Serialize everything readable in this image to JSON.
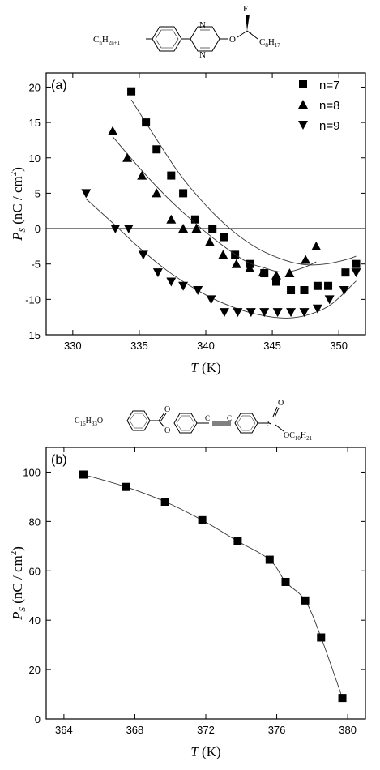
{
  "molecule_a": {
    "left_group": "C",
    "left_sub": "n",
    "left_mid": "H",
    "left_sub2": "2n+1",
    "fluorine": "F",
    "oxygen": "O",
    "nitrogen": "N",
    "chiral_mark": "*",
    "right_group": "C",
    "right_sub": "8",
    "right_mid": "H",
    "right_sub2": "17"
  },
  "molecule_b": {
    "left_group": "C",
    "left_sub": "16",
    "left_mid": "H",
    "left_sub2": "33",
    "left_o": "O",
    "ester_o1": "O",
    "ester_o2": "O",
    "sulfur": "S",
    "sulfinyl_o": "O",
    "right_o": "OC",
    "right_sub": "10",
    "right_mid": "H",
    "right_sub2": "21"
  },
  "chart_data": [
    {
      "type": "scatter",
      "panel_label": "(a)",
      "xlabel_var": "T",
      "xlabel_unit": " (K)",
      "ylabel_var": "P",
      "ylabel_sub": "S",
      "ylabel_unit": "(nC / cm",
      "ylabel_sup": "2",
      "ylabel_close": ")",
      "xlim": [
        328,
        352
      ],
      "ylim": [
        -15,
        22
      ],
      "x_ticks": [
        330,
        335,
        340,
        345,
        350
      ],
      "y_ticks": [
        -15,
        -10,
        -5,
        0,
        5,
        10,
        15,
        20
      ],
      "zero_line": true,
      "legend_position": "top-right",
      "series": [
        {
          "name": "n=7",
          "marker": "square",
          "x": [
            334.4,
            335.5,
            336.3,
            337.4,
            338.3,
            339.2,
            340.5,
            341.4,
            342.2,
            343.3,
            344.4,
            345.3,
            346.4,
            347.4,
            348.4,
            349.2,
            350.5,
            351.3
          ],
          "y": [
            19.4,
            15.0,
            11.2,
            7.5,
            5.0,
            1.3,
            0.0,
            -1.2,
            -3.7,
            -5.0,
            -6.3,
            -7.5,
            -8.7,
            -8.7,
            -8.1,
            -8.1,
            -6.2,
            -5.0
          ],
          "fit": [
            [
              334.4,
              18.2
            ],
            [
              336,
              13.5
            ],
            [
              338,
              7.8
            ],
            [
              340,
              3.3
            ],
            [
              342,
              -0.3
            ],
            [
              344,
              -2.9
            ],
            [
              346,
              -4.5
            ],
            [
              347.5,
              -5.1
            ],
            [
              349,
              -5.0
            ],
            [
              350.5,
              -4.4
            ],
            [
              351.3,
              -3.9
            ]
          ]
        },
        {
          "name": "n=8",
          "marker": "triangle-up",
          "x": [
            333.0,
            334.1,
            335.2,
            336.3,
            337.4,
            338.3,
            339.3,
            340.3,
            341.3,
            342.3,
            343.3,
            344.3,
            345.3,
            346.3,
            347.5,
            348.3
          ],
          "y": [
            13.8,
            10.0,
            7.5,
            5.0,
            1.3,
            0.0,
            0.0,
            -1.9,
            -3.7,
            -5.0,
            -5.6,
            -6.2,
            -6.6,
            -6.3,
            -4.4,
            -2.5
          ],
          "fit": [
            [
              333,
              13.0
            ],
            [
              335,
              8.6
            ],
            [
              337,
              4.6
            ],
            [
              339,
              1.1
            ],
            [
              341,
              -2.0
            ],
            [
              343,
              -4.6
            ],
            [
              344.5,
              -5.6
            ],
            [
              345.5,
              -6.1
            ],
            [
              346.5,
              -6.0
            ],
            [
              347.5,
              -5.4
            ],
            [
              348.3,
              -4.7
            ]
          ]
        },
        {
          "name": "n=9",
          "marker": "triangle-down",
          "x": [
            331.0,
            333.2,
            334.2,
            335.3,
            336.4,
            337.4,
            338.3,
            339.4,
            340.4,
            341.4,
            342.4,
            343.4,
            344.4,
            345.4,
            346.4,
            347.4,
            348.4,
            349.3,
            350.4,
            351.3
          ],
          "y": [
            5.0,
            0.0,
            0.0,
            -3.7,
            -6.2,
            -7.5,
            -8.1,
            -8.7,
            -10.0,
            -11.8,
            -11.8,
            -11.8,
            -11.8,
            -11.8,
            -11.8,
            -11.8,
            -11.3,
            -10.0,
            -8.7,
            -6.2
          ],
          "fit": [
            [
              331,
              4.2
            ],
            [
              333,
              0.8
            ],
            [
              335,
              -2.7
            ],
            [
              337,
              -5.8
            ],
            [
              339,
              -8.3
            ],
            [
              341,
              -10.3
            ],
            [
              343,
              -11.7
            ],
            [
              345,
              -12.5
            ],
            [
              346.5,
              -12.6
            ],
            [
              348,
              -12.0
            ],
            [
              349.5,
              -10.6
            ],
            [
              351.3,
              -7.4
            ]
          ]
        }
      ]
    },
    {
      "type": "line",
      "panel_label": "(b)",
      "xlabel_var": "T",
      "xlabel_unit": " (K)",
      "ylabel_var": "P",
      "ylabel_sub": "S",
      "ylabel_unit": "(nC / cm",
      "ylabel_sup": "2",
      "ylabel_close": ")",
      "xlim": [
        363,
        381
      ],
      "ylim": [
        0,
        110
      ],
      "x_ticks": [
        364,
        368,
        372,
        376,
        380
      ],
      "y_ticks": [
        0,
        20,
        40,
        60,
        80,
        100
      ],
      "series": [
        {
          "name": "",
          "marker": "square",
          "x": [
            365.1,
            367.5,
            369.7,
            371.8,
            373.8,
            375.6,
            376.5,
            377.6,
            378.5,
            379.7
          ],
          "y": [
            99.0,
            94.0,
            88.0,
            80.5,
            72.0,
            64.5,
            55.5,
            48.0,
            33.0,
            8.5
          ]
        }
      ]
    }
  ]
}
